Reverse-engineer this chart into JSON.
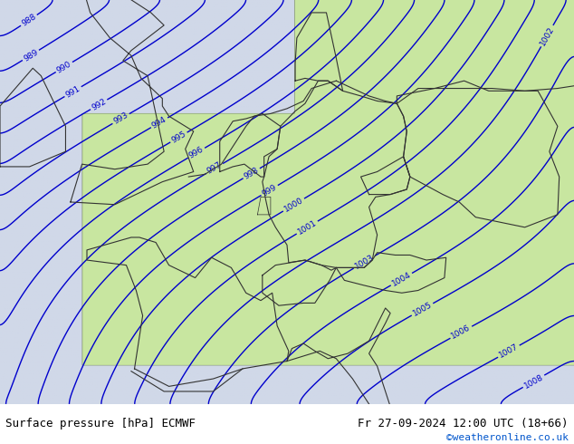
{
  "title_left": "Surface pressure [hPa] ECMWF",
  "title_right": "Fr 27-09-2024 12:00 UTC (18+66)",
  "watermark": "©weatheronline.co.uk",
  "bg_land_color": "#c8e6a0",
  "bg_sea_color": "#d0d8e8",
  "contour_color": "#0000cc",
  "border_color": "#333333",
  "label_color": "#0000cc",
  "text_color_left": "#000000",
  "text_color_right": "#000000",
  "watermark_color": "#0055cc",
  "figsize": [
    6.34,
    4.9
  ],
  "dpi": 100,
  "pressure_min": 988,
  "pressure_max": 1011,
  "pressure_step": 1,
  "bottom_bar_color": "#e8e8e8",
  "bottom_bar_height": 0.08
}
